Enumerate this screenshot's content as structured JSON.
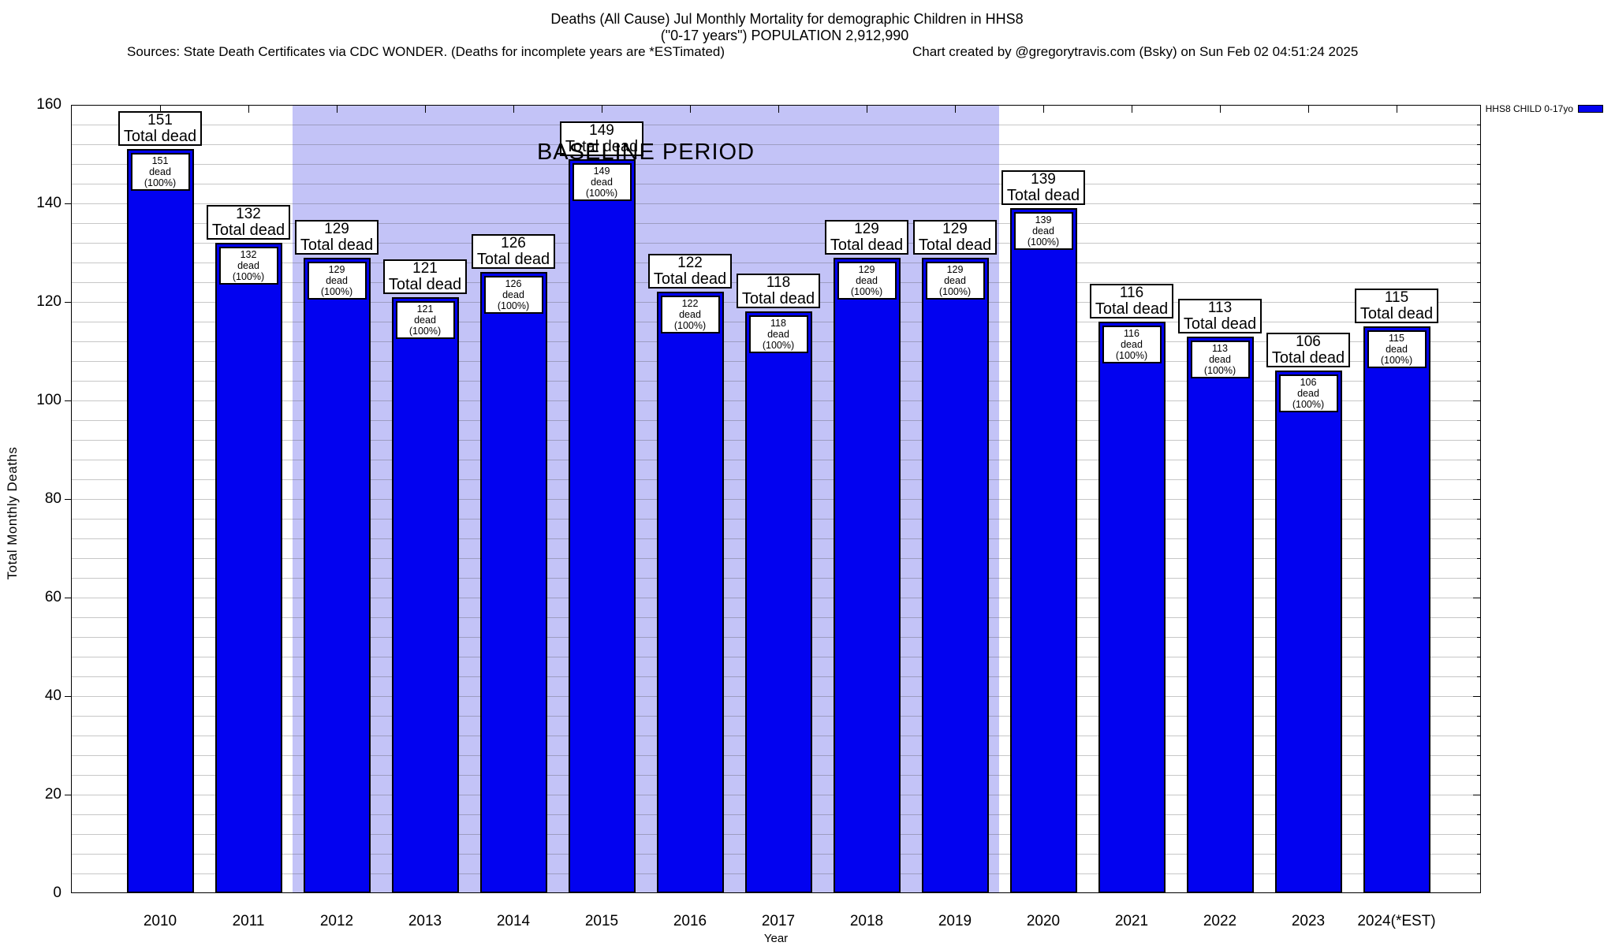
{
  "header": {
    "title_line1": "Deaths (All Cause) Jul Monthly Mortality for demographic Children in HHS8",
    "title_line2": "(\"0-17 years\") POPULATION 2,912,990",
    "sources": "Sources: State Death Certificates via CDC WONDER. (Deaths for incomplete years are *ESTimated)",
    "credit": "Chart created by @gregorytravis.com (Bsky) on Sun Feb 02 04:51:24 2025"
  },
  "legend": {
    "label": "HHS8 CHILD 0-17yo",
    "swatch_color": "#0202f0"
  },
  "axes": {
    "ylabel": "Total Monthly Deaths",
    "xlabel": "Year"
  },
  "baseline_period": {
    "label": "BASELINE PERIOD",
    "from_year": "2012",
    "to_year": "2019",
    "fill": "#c3c3f7"
  },
  "chart_data": {
    "type": "bar",
    "title": "Deaths (All Cause) Jul Monthly Mortality for demographic Children in HHS8 (\"0-17 years\") POPULATION 2,912,990",
    "xlabel": "Year",
    "ylabel": "Total Monthly Deaths",
    "ylim": [
      0,
      160
    ],
    "ytick_step": 20,
    "grid_step": 4,
    "yticks": [
      0,
      20,
      40,
      60,
      80,
      100,
      120,
      140,
      160
    ],
    "grid": true,
    "legend_position": "top-right",
    "series_name": "HHS8 CHILD 0-17yo",
    "bar_color": "#0202f0",
    "categories": [
      "2010",
      "2011",
      "2012",
      "2013",
      "2014",
      "2015",
      "2016",
      "2017",
      "2018",
      "2019",
      "2020",
      "2021",
      "2022",
      "2023",
      "2024(*EST)"
    ],
    "values": [
      151,
      132,
      129,
      121,
      126,
      149,
      122,
      118,
      129,
      129,
      139,
      116,
      113,
      106,
      115
    ],
    "total_label_suffix": "Total dead",
    "inner_label_suffix": "dead (100%)",
    "annotation": "BASELINE PERIOD spans 2012-2019"
  }
}
